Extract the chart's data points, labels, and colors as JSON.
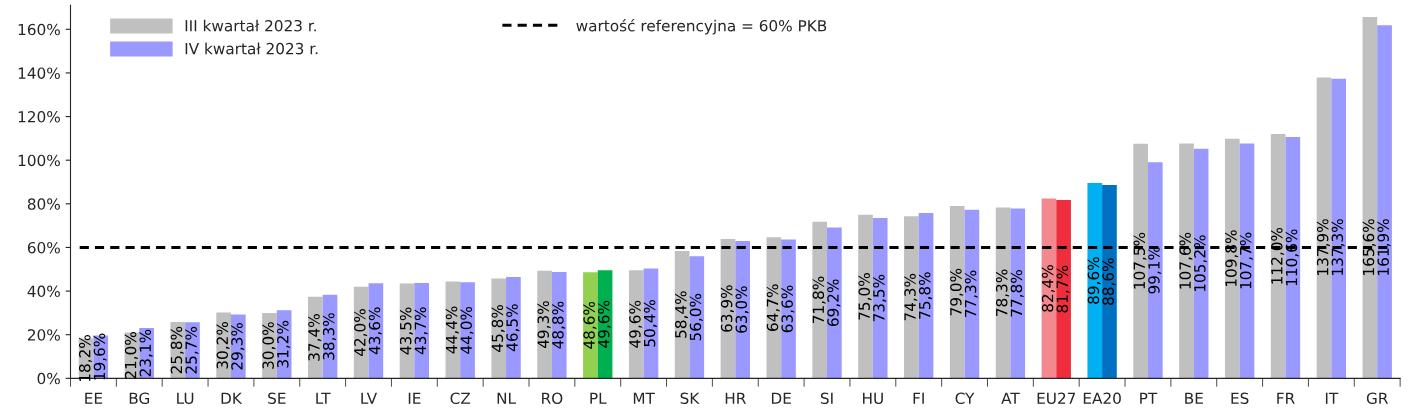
{
  "chart_data": {
    "type": "bar",
    "categories": [
      "EE",
      "BG",
      "LU",
      "DK",
      "SE",
      "LT",
      "LV",
      "IE",
      "CZ",
      "NL",
      "RO",
      "PL",
      "MT",
      "SK",
      "HR",
      "DE",
      "SI",
      "HU",
      "FI",
      "CY",
      "AT",
      "EU27",
      "EA20",
      "PT",
      "BE",
      "ES",
      "FR",
      "IT",
      "GR"
    ],
    "series": [
      {
        "name": "III kwartał 2023 r.",
        "color": "#c0c0c0",
        "colors": [
          "#c0c0c0",
          "#c0c0c0",
          "#c0c0c0",
          "#c0c0c0",
          "#c0c0c0",
          "#c0c0c0",
          "#c0c0c0",
          "#c0c0c0",
          "#c0c0c0",
          "#c0c0c0",
          "#c0c0c0",
          "#92d050",
          "#c0c0c0",
          "#c0c0c0",
          "#c0c0c0",
          "#c0c0c0",
          "#c0c0c0",
          "#c0c0c0",
          "#c0c0c0",
          "#c0c0c0",
          "#c0c0c0",
          "#f4888f",
          "#00b0f0",
          "#c0c0c0",
          "#c0c0c0",
          "#c0c0c0",
          "#c0c0c0",
          "#c0c0c0",
          "#c0c0c0"
        ],
        "values": [
          18.2,
          21.0,
          25.8,
          30.2,
          30.0,
          37.4,
          42.0,
          43.5,
          44.4,
          45.8,
          49.3,
          48.6,
          49.6,
          58.4,
          63.9,
          64.7,
          71.8,
          75.0,
          74.3,
          79.0,
          78.3,
          82.4,
          89.6,
          107.5,
          107.6,
          109.8,
          112.0,
          137.9,
          165.6
        ],
        "value_labels": [
          "18,2%",
          "21,0%",
          "25,8%",
          "30,2%",
          "30,0%",
          "37,4%",
          "42,0%",
          "43,5%",
          "44,4%",
          "45,8%",
          "49,3%",
          "48,6%",
          "49,6%",
          "58,4%",
          "63,9%",
          "64,7%",
          "71,8%",
          "75,0%",
          "74,3%",
          "79,0%",
          "78,3%",
          "82,4%",
          "89,6%",
          "107,5%",
          "107,6%",
          "109,8%",
          "112,0%",
          "137,9%",
          "165,6%"
        ]
      },
      {
        "name": "IV kwartał 2023 r.",
        "color": "#9999ff",
        "colors": [
          "#9999ff",
          "#9999ff",
          "#9999ff",
          "#9999ff",
          "#9999ff",
          "#9999ff",
          "#9999ff",
          "#9999ff",
          "#9999ff",
          "#9999ff",
          "#9999ff",
          "#00b050",
          "#9999ff",
          "#9999ff",
          "#9999ff",
          "#9999ff",
          "#9999ff",
          "#9999ff",
          "#9999ff",
          "#9999ff",
          "#9999ff",
          "#ee2e3d",
          "#0070c0",
          "#9999ff",
          "#9999ff",
          "#9999ff",
          "#9999ff",
          "#9999ff",
          "#9999ff"
        ],
        "values": [
          19.6,
          23.1,
          25.7,
          29.3,
          31.2,
          38.3,
          43.6,
          43.7,
          44.0,
          46.5,
          48.8,
          49.6,
          50.4,
          56.0,
          63.0,
          63.6,
          69.2,
          73.5,
          75.8,
          77.3,
          77.8,
          81.7,
          88.6,
          99.1,
          105.2,
          107.7,
          110.6,
          137.3,
          161.9
        ],
        "value_labels": [
          "19,6%",
          "23,1%",
          "25,7%",
          "29,3%",
          "31,2%",
          "38,3%",
          "43,6%",
          "43,7%",
          "44,0%",
          "46,5%",
          "48,8%",
          "49,6%",
          "50,4%",
          "56,0%",
          "63,0%",
          "63,6%",
          "69,2%",
          "73,5%",
          "75,8%",
          "77,3%",
          "77,8%",
          "81,7%",
          "88,6%",
          "99,1%",
          "105,2%",
          "107,7%",
          "110,6%",
          "137,3%",
          "161,9%"
        ]
      }
    ],
    "ylim": [
      0,
      171
    ],
    "yticks": [
      {
        "value": 0,
        "label": "0%"
      },
      {
        "value": 20,
        "label": "20%"
      },
      {
        "value": 40,
        "label": "40%"
      },
      {
        "value": 60,
        "label": "60%"
      },
      {
        "value": 80,
        "label": "80%"
      },
      {
        "value": 100,
        "label": "100%"
      },
      {
        "value": 120,
        "label": "120%"
      },
      {
        "value": 140,
        "label": "140%"
      },
      {
        "value": 160,
        "label": "160%"
      }
    ],
    "ref_lines": [
      {
        "axis": "y",
        "value": 60,
        "label": "wartość referencyjna = 60% PKB",
        "color": "#000000",
        "line_style": "dashed"
      }
    ],
    "grid": false,
    "legend": "top left"
  }
}
